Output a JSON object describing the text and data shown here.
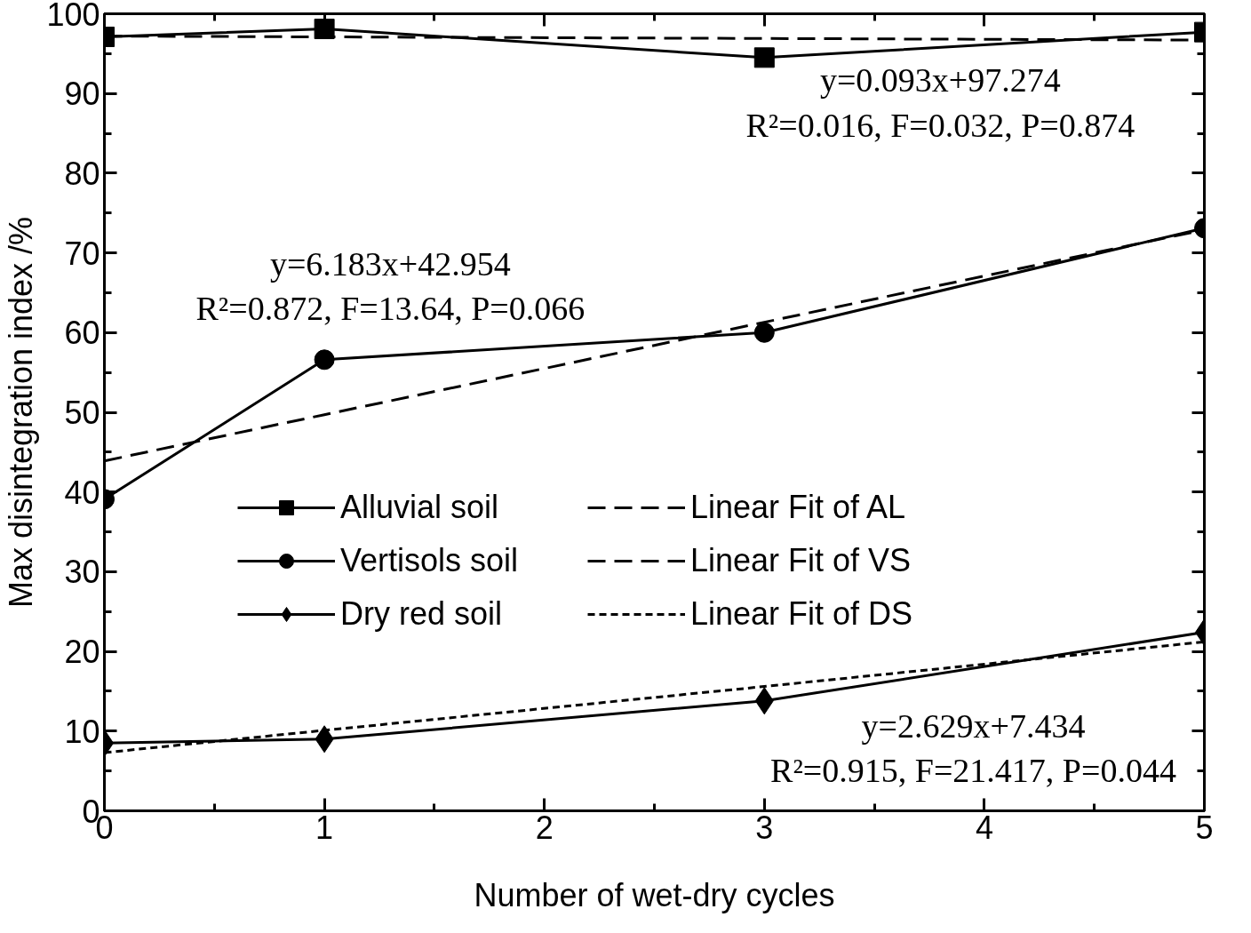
{
  "chart_data": {
    "type": "line",
    "xlabel": "Number of wet-dry cycles",
    "ylabel": "Max disintegration index /%",
    "x": [
      0,
      1,
      3,
      5
    ],
    "series": [
      {
        "name": "Alluvial soil",
        "color": "#000000",
        "values": [
          97.1,
          98.1,
          94.5,
          97.7
        ],
        "marker": "square",
        "line_style": "solid"
      },
      {
        "name": "Vertisols soil",
        "color": "#000000",
        "values": [
          39.1,
          56.6,
          60.0,
          73.1
        ],
        "marker": "circle",
        "line_style": "solid"
      },
      {
        "name": "Dry red soil",
        "color": "#000000",
        "values": [
          8.5,
          9.0,
          13.8,
          22.4
        ],
        "marker": "diamond",
        "line_style": "solid"
      },
      {
        "name": "Linear Fit of AL",
        "color": "#000000",
        "values": [
          97.2,
          97.1,
          96.9,
          96.7
        ],
        "marker": "none",
        "line_style": "dashed"
      },
      {
        "name": "Linear Fit of VS",
        "color": "#000000",
        "values": [
          43.9,
          49.7,
          61.3,
          72.9
        ],
        "marker": "none",
        "line_style": "dashed"
      },
      {
        "name": "Linear Fit of DS",
        "color": "#000000",
        "values": [
          7.3,
          10.1,
          15.6,
          21.2
        ],
        "marker": "none",
        "line_style": "dotted"
      }
    ],
    "xlim": [
      0,
      5
    ],
    "xticks": [
      0,
      1,
      2,
      3,
      4,
      5
    ],
    "ylim": [
      0,
      100
    ],
    "yticks": [
      0,
      10,
      20,
      30,
      40,
      50,
      60,
      70,
      80,
      90,
      100
    ],
    "annotations": [
      "y=0.093x+97.274\nR²=0.016, F=0.032, P=0.874",
      "y=6.183x+42.954\nR²=0.872, F=13.64, P=0.066",
      "y=2.629x+7.434\nR²=0.915, F=21.417, P=0.044"
    ],
    "grid": false,
    "legend": "center"
  }
}
